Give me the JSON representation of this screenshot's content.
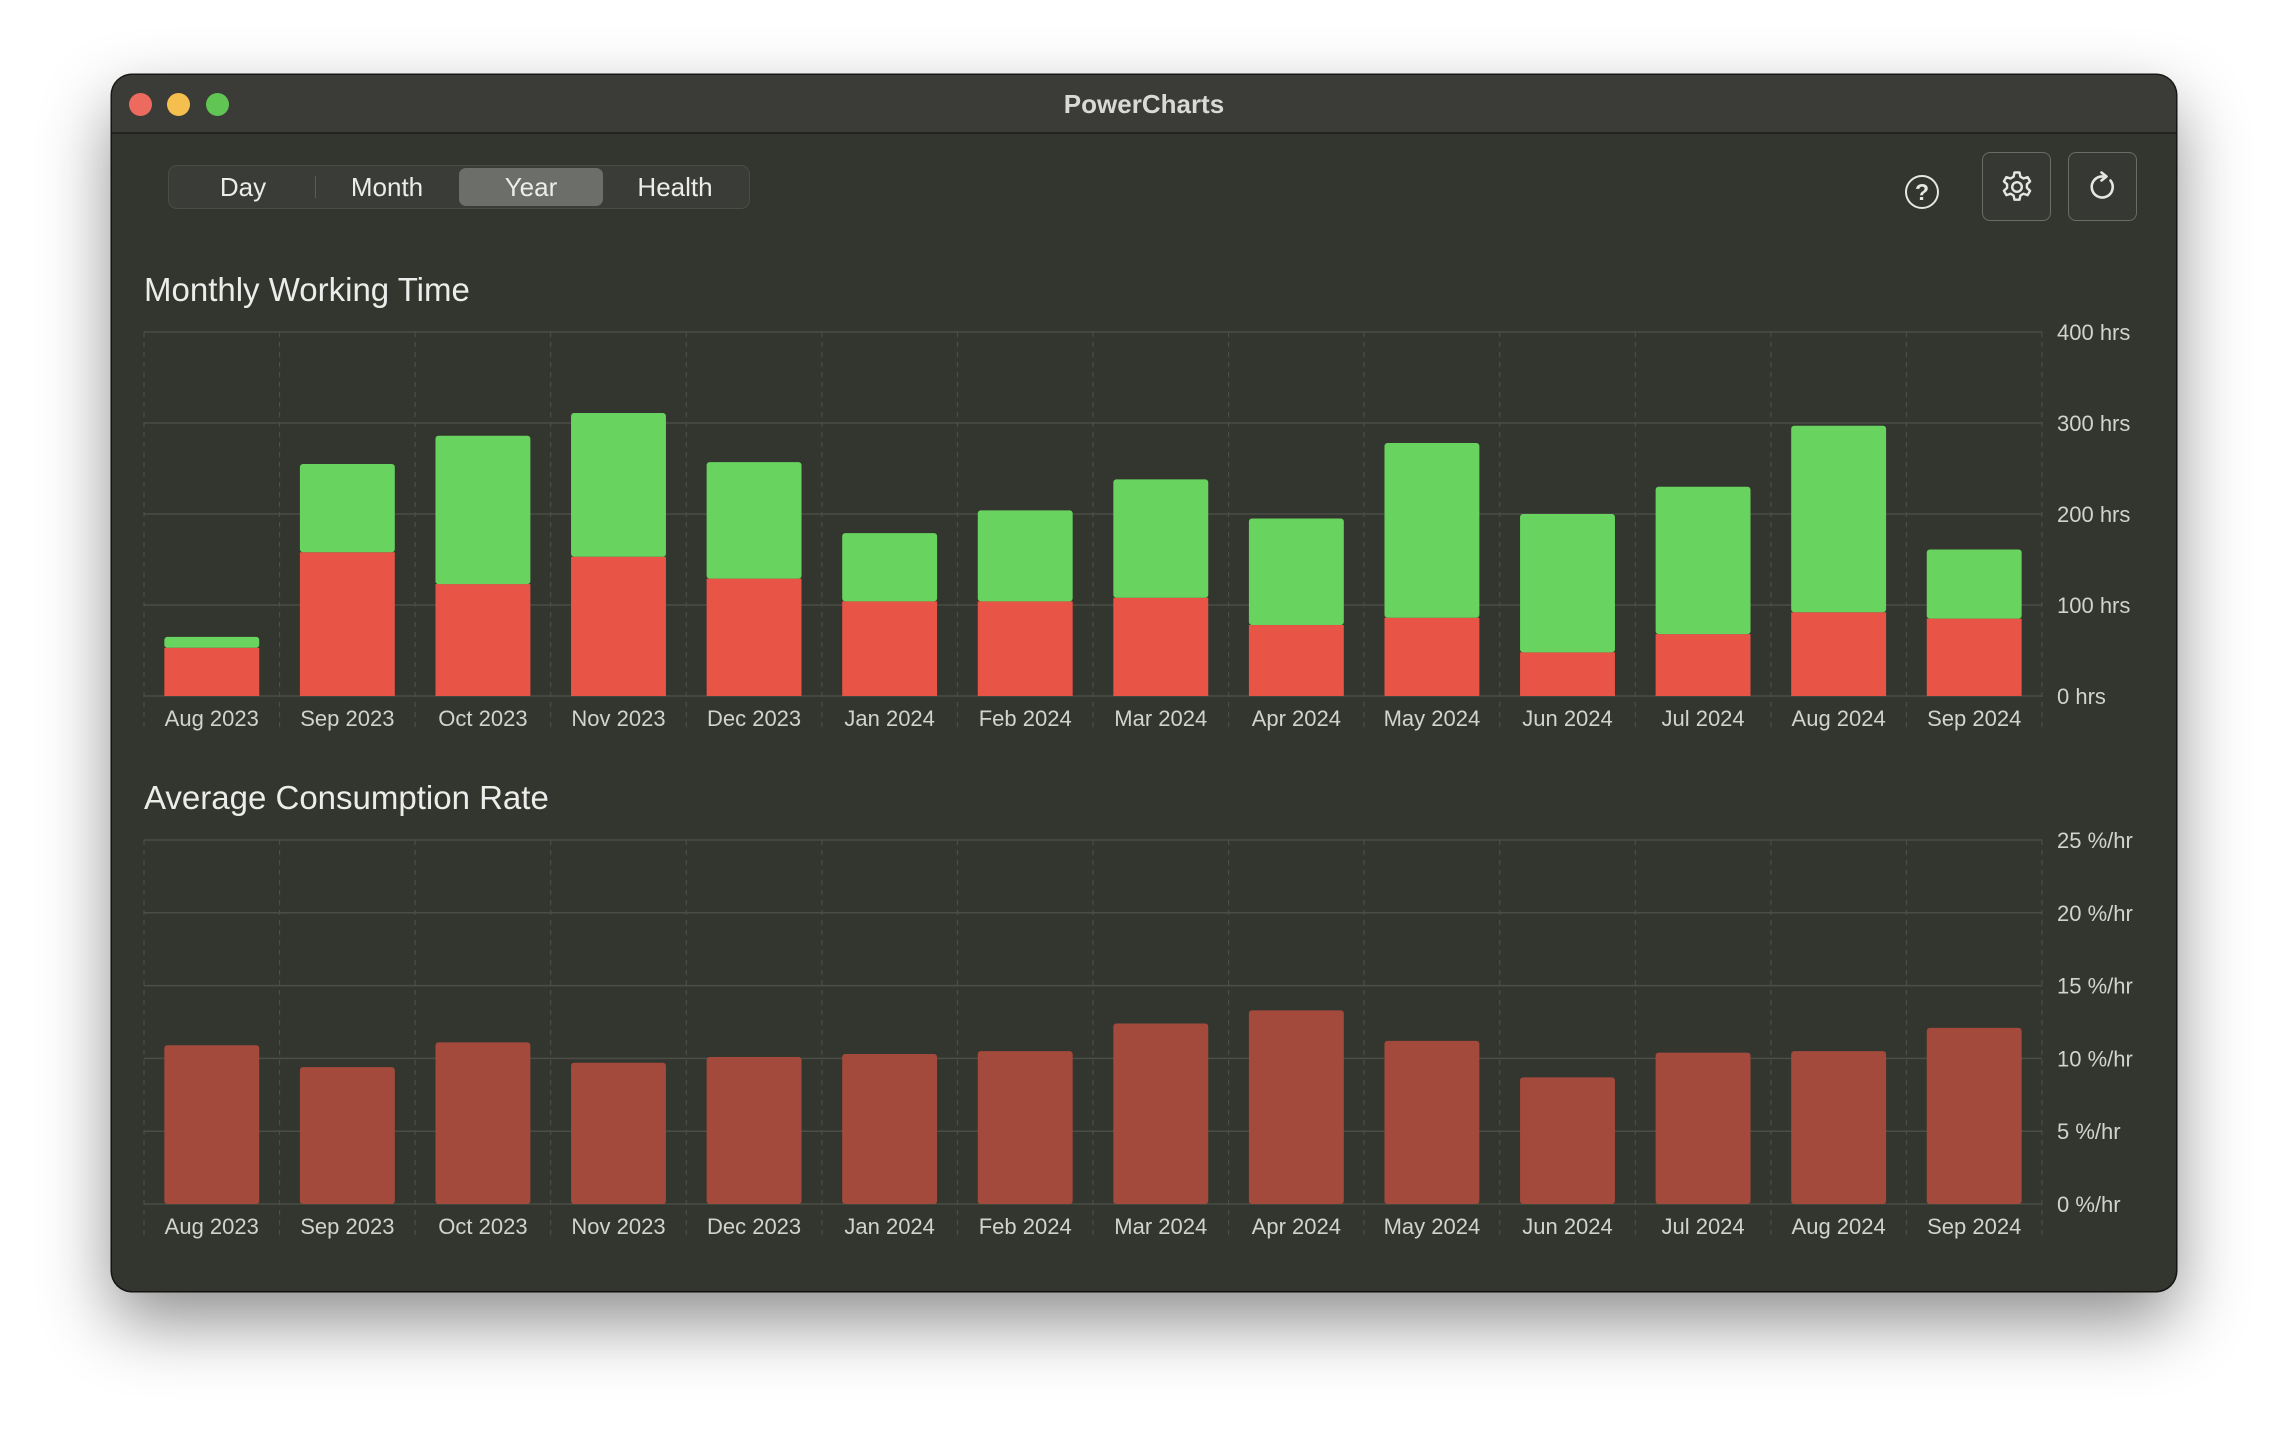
{
  "window": {
    "title": "PowerCharts"
  },
  "tabs": [
    {
      "label": "Day",
      "active": false
    },
    {
      "label": "Month",
      "active": false
    },
    {
      "label": "Year",
      "active": true
    },
    {
      "label": "Health",
      "active": false
    }
  ],
  "toolbar": {
    "help_icon": "question-circle-icon",
    "help_glyph": "?",
    "settings_icon": "gear-icon",
    "refresh_icon": "refresh-icon"
  },
  "colors": {
    "green": "#68d35f",
    "red": "#e85446",
    "dark_red": "#a44a3d",
    "background": "#33352f"
  },
  "chart_data": [
    {
      "type": "bar",
      "stacked": true,
      "title": "Monthly Working Time",
      "categories": [
        "Aug 2023",
        "Sep 2023",
        "Oct 2023",
        "Nov 2023",
        "Dec 2023",
        "Jan 2024",
        "Feb 2024",
        "Mar 2024",
        "Apr 2024",
        "May 2024",
        "Jun 2024",
        "Jul 2024",
        "Aug 2024",
        "Sep 2024"
      ],
      "series": [
        {
          "color": "#e85446",
          "values": [
            53,
            158,
            123,
            153,
            129,
            104,
            104,
            108,
            78,
            86,
            48,
            68,
            92,
            85
          ]
        },
        {
          "color": "#68d35f",
          "values": [
            12,
            97,
            163,
            158,
            128,
            75,
            100,
            130,
            117,
            192,
            152,
            162,
            205,
            76
          ]
        }
      ],
      "ylim": [
        0,
        400
      ],
      "yticks": [
        "0 hrs",
        "100 hrs",
        "200 hrs",
        "300 hrs",
        "400 hrs"
      ],
      "grid": true
    },
    {
      "type": "bar",
      "title": "Average Consumption Rate",
      "categories": [
        "Aug 2023",
        "Sep 2023",
        "Oct 2023",
        "Nov 2023",
        "Dec 2023",
        "Jan 2024",
        "Feb 2024",
        "Mar 2024",
        "Apr 2024",
        "May 2024",
        "Jun 2024",
        "Jul 2024",
        "Aug 2024",
        "Sep 2024"
      ],
      "series": [
        {
          "color": "#a44a3d",
          "values": [
            10.9,
            9.4,
            11.1,
            9.7,
            10.1,
            10.3,
            10.5,
            12.4,
            13.3,
            11.2,
            8.7,
            10.4,
            10.5,
            12.1
          ]
        }
      ],
      "ylim": [
        0,
        25
      ],
      "yticks": [
        "0 %/hr",
        "5 %/hr",
        "10 %/hr",
        "15 %/hr",
        "20 %/hr",
        "25 %/hr"
      ],
      "grid": true
    }
  ]
}
